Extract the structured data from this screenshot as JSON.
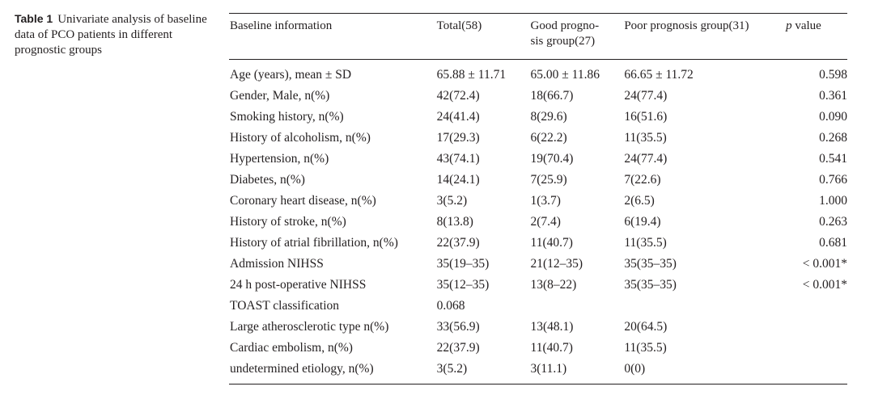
{
  "caption": {
    "label": "Table 1",
    "text": "Univariate analysis of baseline data of PCO patients in different prognostic groups"
  },
  "table": {
    "headers": {
      "baseline": "Baseline information",
      "total": "Total(58)",
      "good": "Good progno-sis group(27)",
      "good_line1": "Good progno-",
      "good_line2": "sis group(27)",
      "poor": "Poor prognosis group(31)",
      "p_italic": "p",
      "p_rest": " value"
    },
    "rows": [
      {
        "label": "Age (years), mean ± SD",
        "total": "65.88 ± 11.71",
        "good": "65.00 ± 11.86",
        "poor": "66.65 ± 11.72",
        "p": "0.598"
      },
      {
        "label": "Gender, Male, n(%)",
        "total": "42(72.4)",
        "good": "18(66.7)",
        "poor": "24(77.4)",
        "p": "0.361"
      },
      {
        "label": "Smoking history, n(%)",
        "total": "24(41.4)",
        "good": "8(29.6)",
        "poor": "16(51.6)",
        "p": "0.090"
      },
      {
        "label": "History of alcoholism, n(%)",
        "total": "17(29.3)",
        "good": "6(22.2)",
        "poor": "11(35.5)",
        "p": "0.268"
      },
      {
        "label": "Hypertension, n(%)",
        "total": "43(74.1)",
        "good": "19(70.4)",
        "poor": "24(77.4)",
        "p": "0.541"
      },
      {
        "label": "Diabetes, n(%)",
        "total": "14(24.1)",
        "good": "7(25.9)",
        "poor": "7(22.6)",
        "p": "0.766"
      },
      {
        "label": "Coronary heart disease, n(%)",
        "total": "3(5.2)",
        "good": "1(3.7)",
        "poor": "2(6.5)",
        "p": "1.000"
      },
      {
        "label": "History of stroke, n(%)",
        "total": "8(13.8)",
        "good": "2(7.4)",
        "poor": "6(19.4)",
        "p": "0.263"
      },
      {
        "label": "History of atrial fibrillation, n(%)",
        "total": "22(37.9)",
        "good": "11(40.7)",
        "poor": "11(35.5)",
        "p": "0.681"
      },
      {
        "label": "Admission NIHSS",
        "total": "35(19–35)",
        "good": "21(12–35)",
        "poor": "35(35–35)",
        "p": "< 0.001*"
      },
      {
        "label": "24 h post-operative NIHSS",
        "total": "35(12–35)",
        "good": "13(8–22)",
        "poor": "35(35–35)",
        "p": "< 0.001*"
      },
      {
        "label": "TOAST classification",
        "total": "0.068",
        "good": "",
        "poor": "",
        "p": ""
      },
      {
        "label": "Large atherosclerotic type n(%)",
        "total": "33(56.9)",
        "good": "13(48.1)",
        "poor": "20(64.5)",
        "p": ""
      },
      {
        "label": "Cardiac embolism, n(%)",
        "total": "22(37.9)",
        "good": "11(40.7)",
        "poor": "11(35.5)",
        "p": ""
      },
      {
        "label": "undetermined etiology, n(%)",
        "total": "3(5.2)",
        "good": "3(11.1)",
        "poor": "0(0)",
        "p": ""
      }
    ]
  }
}
